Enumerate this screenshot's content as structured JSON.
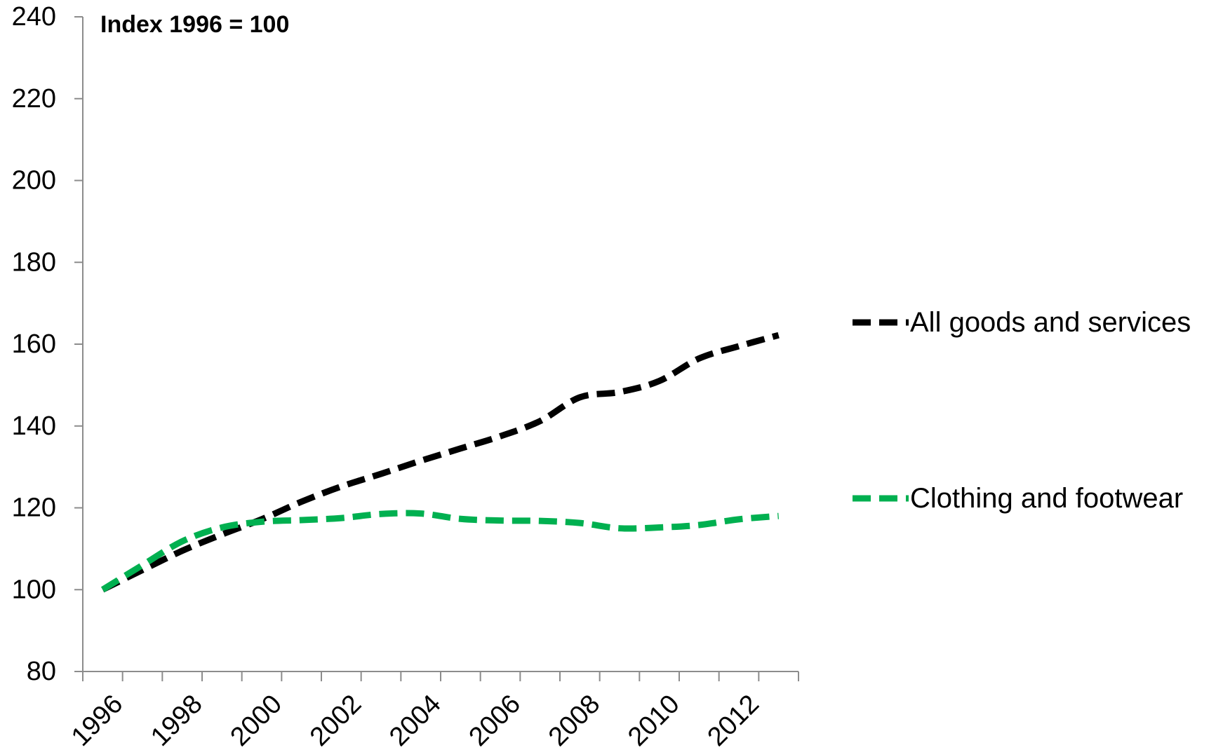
{
  "chart_data": {
    "type": "line",
    "title": "",
    "annotation": "Index 1996 = 100",
    "xlabel": "",
    "ylabel": "",
    "x": [
      1996,
      1997,
      1998,
      1999,
      2000,
      2001,
      2002,
      2003,
      2004,
      2005,
      2006,
      2007,
      2008,
      2009,
      2010,
      2011,
      2012,
      2013
    ],
    "xlim": [
      1996,
      2013
    ],
    "x_tick_labels": [
      "1996",
      "1998",
      "2000",
      "2002",
      "2004",
      "2006",
      "2008",
      "2010",
      "2012"
    ],
    "ylim": [
      80,
      240
    ],
    "y_ticks": [
      80,
      100,
      120,
      140,
      160,
      180,
      200,
      220,
      240
    ],
    "y_tick_labels": [
      "80",
      "100",
      "120",
      "140",
      "160",
      "180",
      "200",
      "220",
      "240"
    ],
    "grid": false,
    "legend_position": "right",
    "series": [
      {
        "name": "All goods and services",
        "color": "#000000",
        "line_style": "dashed",
        "values": [
          100,
          104.8,
          109.5,
          113.5,
          117.2,
          121.5,
          125.2,
          128.3,
          131.5,
          134.5,
          137.5,
          141.2,
          147.0,
          148.3,
          151.0,
          156.5,
          159.5,
          162.2
        ]
      },
      {
        "name": "Clothing and footwear",
        "color": "#00b050",
        "line_style": "dashed",
        "values": [
          100,
          106.0,
          111.8,
          115.2,
          116.6,
          117.0,
          117.5,
          118.5,
          118.6,
          117.3,
          116.9,
          116.8,
          116.3,
          115.0,
          115.2,
          115.8,
          117.2,
          118.0
        ]
      }
    ]
  }
}
